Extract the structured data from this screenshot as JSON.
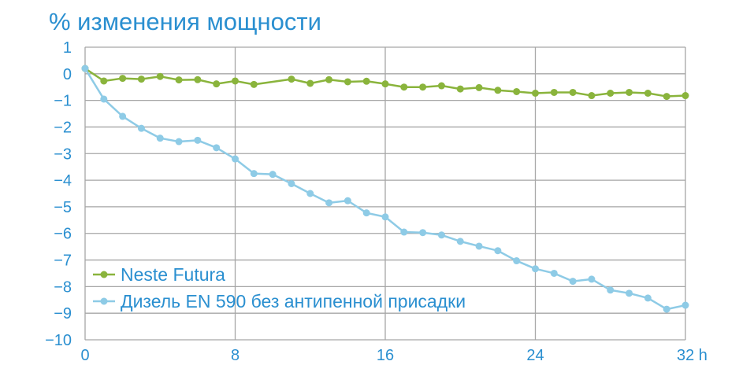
{
  "chart_data": {
    "type": "line",
    "title": "% изменения мощности",
    "xlim": [
      0,
      32
    ],
    "ylim": [
      -10,
      1
    ],
    "x_ticks": [
      0,
      8,
      16,
      24,
      32
    ],
    "x_tick_labels": [
      "0",
      "8",
      "16",
      "24",
      "32 h"
    ],
    "y_ticks": [
      1,
      0,
      -1,
      -2,
      -3,
      -4,
      -5,
      -6,
      -7,
      -8,
      -9,
      -10
    ],
    "y_tick_labels": [
      "1",
      "0",
      "−1",
      "−2",
      "−3",
      "−4",
      "−5",
      "−6",
      "−7",
      "−8",
      "−9",
      "−10"
    ],
    "grid": true,
    "legend": "bottom-left",
    "series": [
      {
        "name": "Neste Futura",
        "color": "#8ab43c",
        "x": [
          0,
          1,
          2,
          3,
          4,
          5,
          6,
          7,
          8,
          9,
          11,
          12,
          13,
          14,
          15,
          16,
          17,
          18,
          19,
          20,
          21,
          22,
          23,
          24,
          25,
          26,
          27,
          28,
          29,
          30,
          31,
          32
        ],
        "y": [
          0.2,
          -0.27,
          -0.17,
          -0.2,
          -0.1,
          -0.23,
          -0.22,
          -0.38,
          -0.27,
          -0.4,
          -0.2,
          -0.36,
          -0.22,
          -0.3,
          -0.28,
          -0.38,
          -0.5,
          -0.5,
          -0.45,
          -0.57,
          -0.52,
          -0.62,
          -0.67,
          -0.73,
          -0.7,
          -0.7,
          -0.82,
          -0.73,
          -0.7,
          -0.73,
          -0.85,
          -0.82
        ]
      },
      {
        "name": "Дизель EN 590 без антипенной присадки",
        "color": "#8ecbe6",
        "x": [
          0,
          1,
          2,
          3,
          4,
          5,
          6,
          7,
          8,
          9,
          10,
          11,
          12,
          13,
          14,
          15,
          16,
          17,
          18,
          19,
          20,
          21,
          22,
          23,
          24,
          25,
          26,
          27,
          28,
          29,
          30,
          31,
          32
        ],
        "y": [
          0.2,
          -0.95,
          -1.6,
          -2.05,
          -2.42,
          -2.55,
          -2.5,
          -2.78,
          -3.2,
          -3.75,
          -3.78,
          -4.13,
          -4.5,
          -4.85,
          -4.77,
          -5.23,
          -5.38,
          -5.95,
          -5.97,
          -6.06,
          -6.3,
          -6.48,
          -6.65,
          -7.03,
          -7.33,
          -7.5,
          -7.8,
          -7.72,
          -8.13,
          -8.25,
          -8.43,
          -8.85,
          -8.7
        ]
      }
    ]
  },
  "colors": {
    "text": "#2a8fd0",
    "grid": "#a6a6a6"
  }
}
